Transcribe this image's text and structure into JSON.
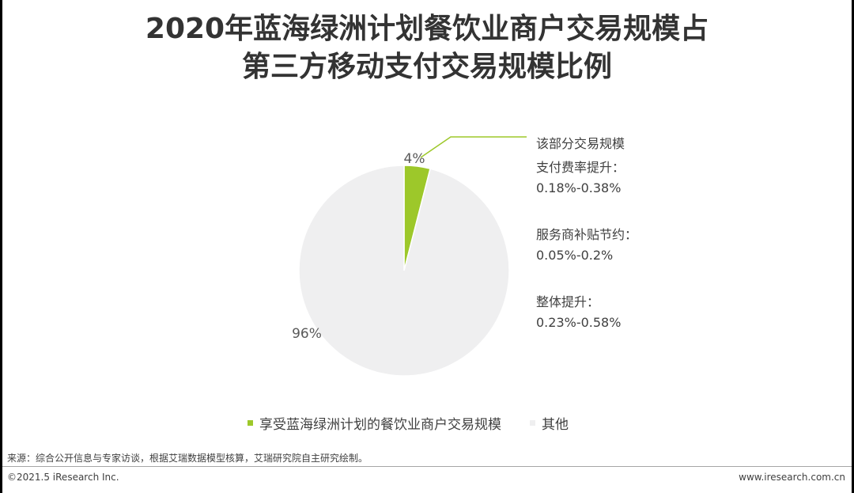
{
  "title": {
    "line1": "2020年蓝海绿洲计划餐饮业商户交易规模占",
    "line2": "第三方移动支付交易规模比例"
  },
  "chart_data": {
    "type": "pie",
    "slices": [
      {
        "name": "享受蓝海绿洲计划的餐饮业商户交易规模",
        "value": 4,
        "label": "4%",
        "color": "#9DC82A"
      },
      {
        "name": "其他",
        "value": 96,
        "label": "96%",
        "color": "#EFEFF0"
      }
    ],
    "start_angle_deg": 0,
    "direction": "clockwise",
    "legend_position": "bottom"
  },
  "annotation": {
    "heading": "该部分交易规模",
    "items": [
      {
        "label": "支付费率提升：",
        "value": "0.18%-0.38%"
      },
      {
        "label": "服务商补贴节约：",
        "value": "0.05%-0.2%"
      },
      {
        "label": "整体提升：",
        "value": "0.23%-0.58%"
      }
    ]
  },
  "source": "来源：综合公开信息与专家访谈，根据艾瑞数据模型核算，艾瑞研究院自主研究绘制。",
  "footer": {
    "copyright": "©2021.5 iResearch Inc.",
    "website": "www.iresearch.com.cn"
  }
}
